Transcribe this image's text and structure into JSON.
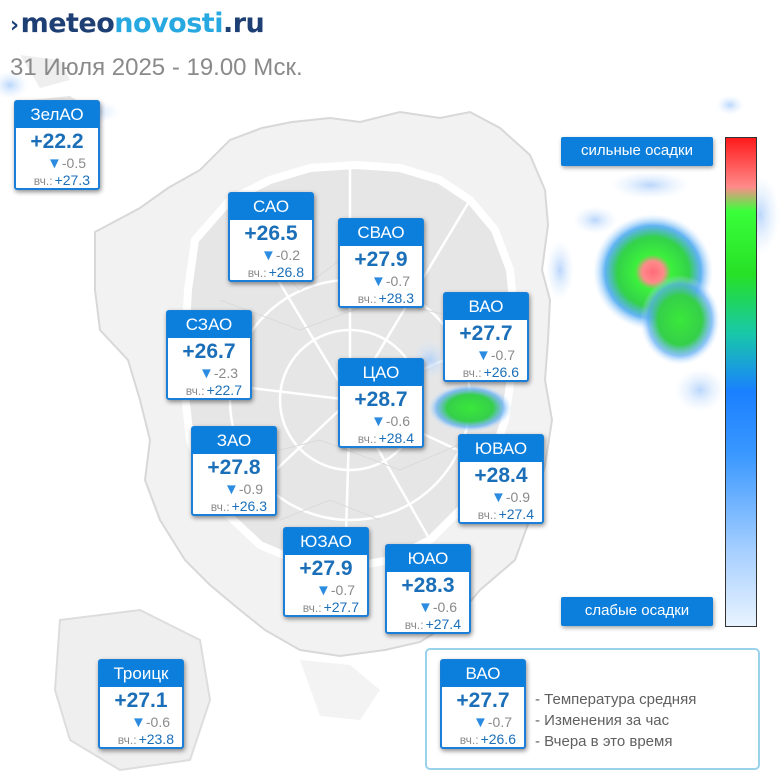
{
  "logo": {
    "part1": "meteo",
    "part2": "novosti",
    "part3": ".ru"
  },
  "subtitle": "31 Июля 2025 - 19.00 Мск.",
  "yesterday_label": "вч.:",
  "districts": [
    {
      "name": "ЗелАО",
      "temp": "+22.2",
      "change": "-0.5",
      "yesterday": "+27.3"
    },
    {
      "name": "САО",
      "temp": "+26.5",
      "change": "-0.2",
      "yesterday": "+26.8"
    },
    {
      "name": "СВАО",
      "temp": "+27.9",
      "change": "-0.7",
      "yesterday": "+28.3"
    },
    {
      "name": "ВАО",
      "temp": "+27.7",
      "change": "-0.7",
      "yesterday": "+26.6"
    },
    {
      "name": "СЗАО",
      "temp": "+26.7",
      "change": "-2.3",
      "yesterday": "+22.7"
    },
    {
      "name": "ЦАО",
      "temp": "+28.7",
      "change": "-0.6",
      "yesterday": "+28.4"
    },
    {
      "name": "ЗАО",
      "temp": "+27.8",
      "change": "-0.9",
      "yesterday": "+26.3"
    },
    {
      "name": "ЮВАО",
      "temp": "+28.4",
      "change": "-0.9",
      "yesterday": "+27.4"
    },
    {
      "name": "ЮЗАО",
      "temp": "+27.9",
      "change": "-0.7",
      "yesterday": "+27.7"
    },
    {
      "name": "ЮАО",
      "temp": "+28.3",
      "change": "-0.6",
      "yesterday": "+27.4"
    },
    {
      "name": "Троицк",
      "temp": "+27.1",
      "change": "-0.6",
      "yesterday": "+23.8"
    }
  ],
  "precip_legend": {
    "strong": "сильные осадки",
    "weak": "слабые осадки",
    "colors": [
      "#ff1a1a",
      "#3aff3a",
      "#1a80ff",
      "#e8f3ff"
    ]
  },
  "legend": {
    "example": {
      "name": "ВАО",
      "temp": "+27.7",
      "change": "-0.7",
      "yesterday": "+26.6"
    },
    "items": [
      "- Температура средняя",
      "- Изменения за час",
      "- Вчера в это время"
    ]
  }
}
